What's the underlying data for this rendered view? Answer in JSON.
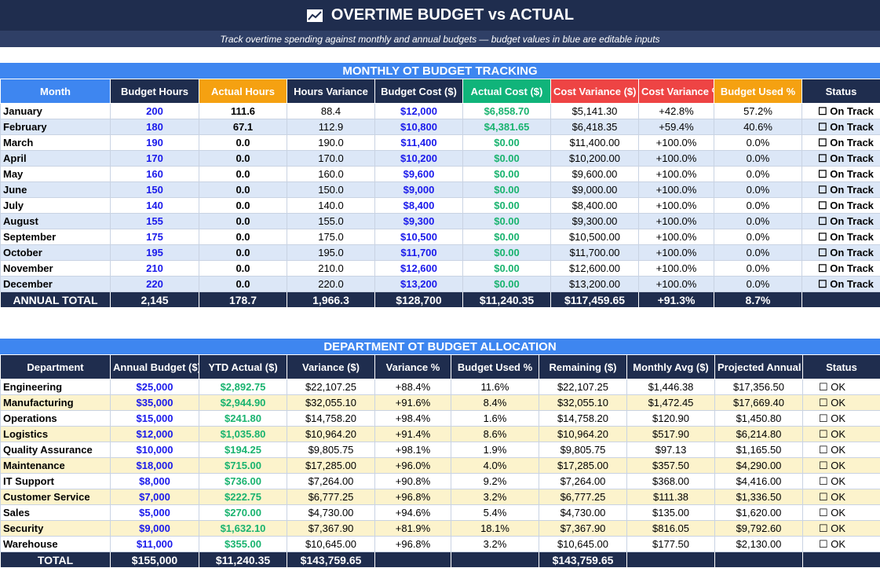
{
  "header": {
    "title": "OVERTIME BUDGET vs ACTUAL",
    "icon": "chart-icon",
    "subtitle": "Track overtime spending against monthly and annual budgets — budget values in blue are editable inputs"
  },
  "monthly": {
    "section_title": "MONTHLY OT BUDGET TRACKING",
    "columns": [
      "Month",
      "Budget Hours",
      "Actual Hours",
      "Hours Variance",
      "Budget Cost ($)",
      "Actual Cost ($)",
      "Cost Variance ($)",
      "Cost Variance %",
      "Budget Used %",
      "Status"
    ],
    "rows": [
      [
        "January",
        "200",
        "111.6",
        "88.4",
        "$12,000",
        "$6,858.70",
        "$5,141.30",
        "+42.8%",
        "57.2%",
        "☐ On Track"
      ],
      [
        "February",
        "180",
        "67.1",
        "112.9",
        "$10,800",
        "$4,381.65",
        "$6,418.35",
        "+59.4%",
        "40.6%",
        "☐ On Track"
      ],
      [
        "March",
        "190",
        "0.0",
        "190.0",
        "$11,400",
        "$0.00",
        "$11,400.00",
        "+100.0%",
        "0.0%",
        "☐ On Track"
      ],
      [
        "April",
        "170",
        "0.0",
        "170.0",
        "$10,200",
        "$0.00",
        "$10,200.00",
        "+100.0%",
        "0.0%",
        "☐ On Track"
      ],
      [
        "May",
        "160",
        "0.0",
        "160.0",
        "$9,600",
        "$0.00",
        "$9,600.00",
        "+100.0%",
        "0.0%",
        "☐ On Track"
      ],
      [
        "June",
        "150",
        "0.0",
        "150.0",
        "$9,000",
        "$0.00",
        "$9,000.00",
        "+100.0%",
        "0.0%",
        "☐ On Track"
      ],
      [
        "July",
        "140",
        "0.0",
        "140.0",
        "$8,400",
        "$0.00",
        "$8,400.00",
        "+100.0%",
        "0.0%",
        "☐ On Track"
      ],
      [
        "August",
        "155",
        "0.0",
        "155.0",
        "$9,300",
        "$0.00",
        "$9,300.00",
        "+100.0%",
        "0.0%",
        "☐ On Track"
      ],
      [
        "September",
        "175",
        "0.0",
        "175.0",
        "$10,500",
        "$0.00",
        "$10,500.00",
        "+100.0%",
        "0.0%",
        "☐ On Track"
      ],
      [
        "October",
        "195",
        "0.0",
        "195.0",
        "$11,700",
        "$0.00",
        "$11,700.00",
        "+100.0%",
        "0.0%",
        "☐ On Track"
      ],
      [
        "November",
        "210",
        "0.0",
        "210.0",
        "$12,600",
        "$0.00",
        "$12,600.00",
        "+100.0%",
        "0.0%",
        "☐ On Track"
      ],
      [
        "December",
        "220",
        "0.0",
        "220.0",
        "$13,200",
        "$0.00",
        "$13,200.00",
        "+100.0%",
        "0.0%",
        "☐ On Track"
      ]
    ],
    "total": [
      "ANNUAL TOTAL",
      "2,145",
      "178.7",
      "1,966.3",
      "$128,700",
      "$11,240.35",
      "$117,459.65",
      "+91.3%",
      "8.7%",
      ""
    ]
  },
  "department": {
    "section_title": "DEPARTMENT OT BUDGET ALLOCATION",
    "columns": [
      "Department",
      "Annual Budget ($)",
      "YTD Actual ($)",
      "Variance ($)",
      "Variance %",
      "Budget Used %",
      "Remaining ($)",
      "Monthly Avg ($)",
      "Projected Annual",
      "Status"
    ],
    "rows": [
      [
        "Engineering",
        "$25,000",
        "$2,892.75",
        "$22,107.25",
        "+88.4%",
        "11.6%",
        "$22,107.25",
        "$1,446.38",
        "$17,356.50",
        "☐ OK"
      ],
      [
        "Manufacturing",
        "$35,000",
        "$2,944.90",
        "$32,055.10",
        "+91.6%",
        "8.4%",
        "$32,055.10",
        "$1,472.45",
        "$17,669.40",
        "☐ OK"
      ],
      [
        "Operations",
        "$15,000",
        "$241.80",
        "$14,758.20",
        "+98.4%",
        "1.6%",
        "$14,758.20",
        "$120.90",
        "$1,450.80",
        "☐ OK"
      ],
      [
        "Logistics",
        "$12,000",
        "$1,035.80",
        "$10,964.20",
        "+91.4%",
        "8.6%",
        "$10,964.20",
        "$517.90",
        "$6,214.80",
        "☐ OK"
      ],
      [
        "Quality Assurance",
        "$10,000",
        "$194.25",
        "$9,805.75",
        "+98.1%",
        "1.9%",
        "$9,805.75",
        "$97.13",
        "$1,165.50",
        "☐ OK"
      ],
      [
        "Maintenance",
        "$18,000",
        "$715.00",
        "$17,285.00",
        "+96.0%",
        "4.0%",
        "$17,285.00",
        "$357.50",
        "$4,290.00",
        "☐ OK"
      ],
      [
        "IT Support",
        "$8,000",
        "$736.00",
        "$7,264.00",
        "+90.8%",
        "9.2%",
        "$7,264.00",
        "$368.00",
        "$4,416.00",
        "☐ OK"
      ],
      [
        "Customer Service",
        "$7,000",
        "$222.75",
        "$6,777.25",
        "+96.8%",
        "3.2%",
        "$6,777.25",
        "$111.38",
        "$1,336.50",
        "☐ OK"
      ],
      [
        "Sales",
        "$5,000",
        "$270.00",
        "$4,730.00",
        "+94.6%",
        "5.4%",
        "$4,730.00",
        "$135.00",
        "$1,620.00",
        "☐ OK"
      ],
      [
        "Security",
        "$9,000",
        "$1,632.10",
        "$7,367.90",
        "+81.9%",
        "18.1%",
        "$7,367.90",
        "$816.05",
        "$9,792.60",
        "☐ OK"
      ],
      [
        "Warehouse",
        "$11,000",
        "$355.00",
        "$10,645.00",
        "+96.8%",
        "3.2%",
        "$10,645.00",
        "$177.50",
        "$2,130.00",
        "☐ OK"
      ]
    ],
    "total": [
      "TOTAL",
      "$155,000",
      "$11,240.35",
      "$143,759.65",
      "",
      "",
      "$143,759.65",
      "",
      "",
      ""
    ]
  },
  "colors": {
    "navy": "#1f2d4e",
    "section_blue": "#3e86f0",
    "orange": "#f5a111",
    "green": "#10b47a",
    "red": "#ee4444",
    "input_blue": "#1a1aeb",
    "value_green": "#19b36f",
    "month_alt_row": "#dce7f7",
    "dept_alt_row": "#fcf3cc"
  }
}
